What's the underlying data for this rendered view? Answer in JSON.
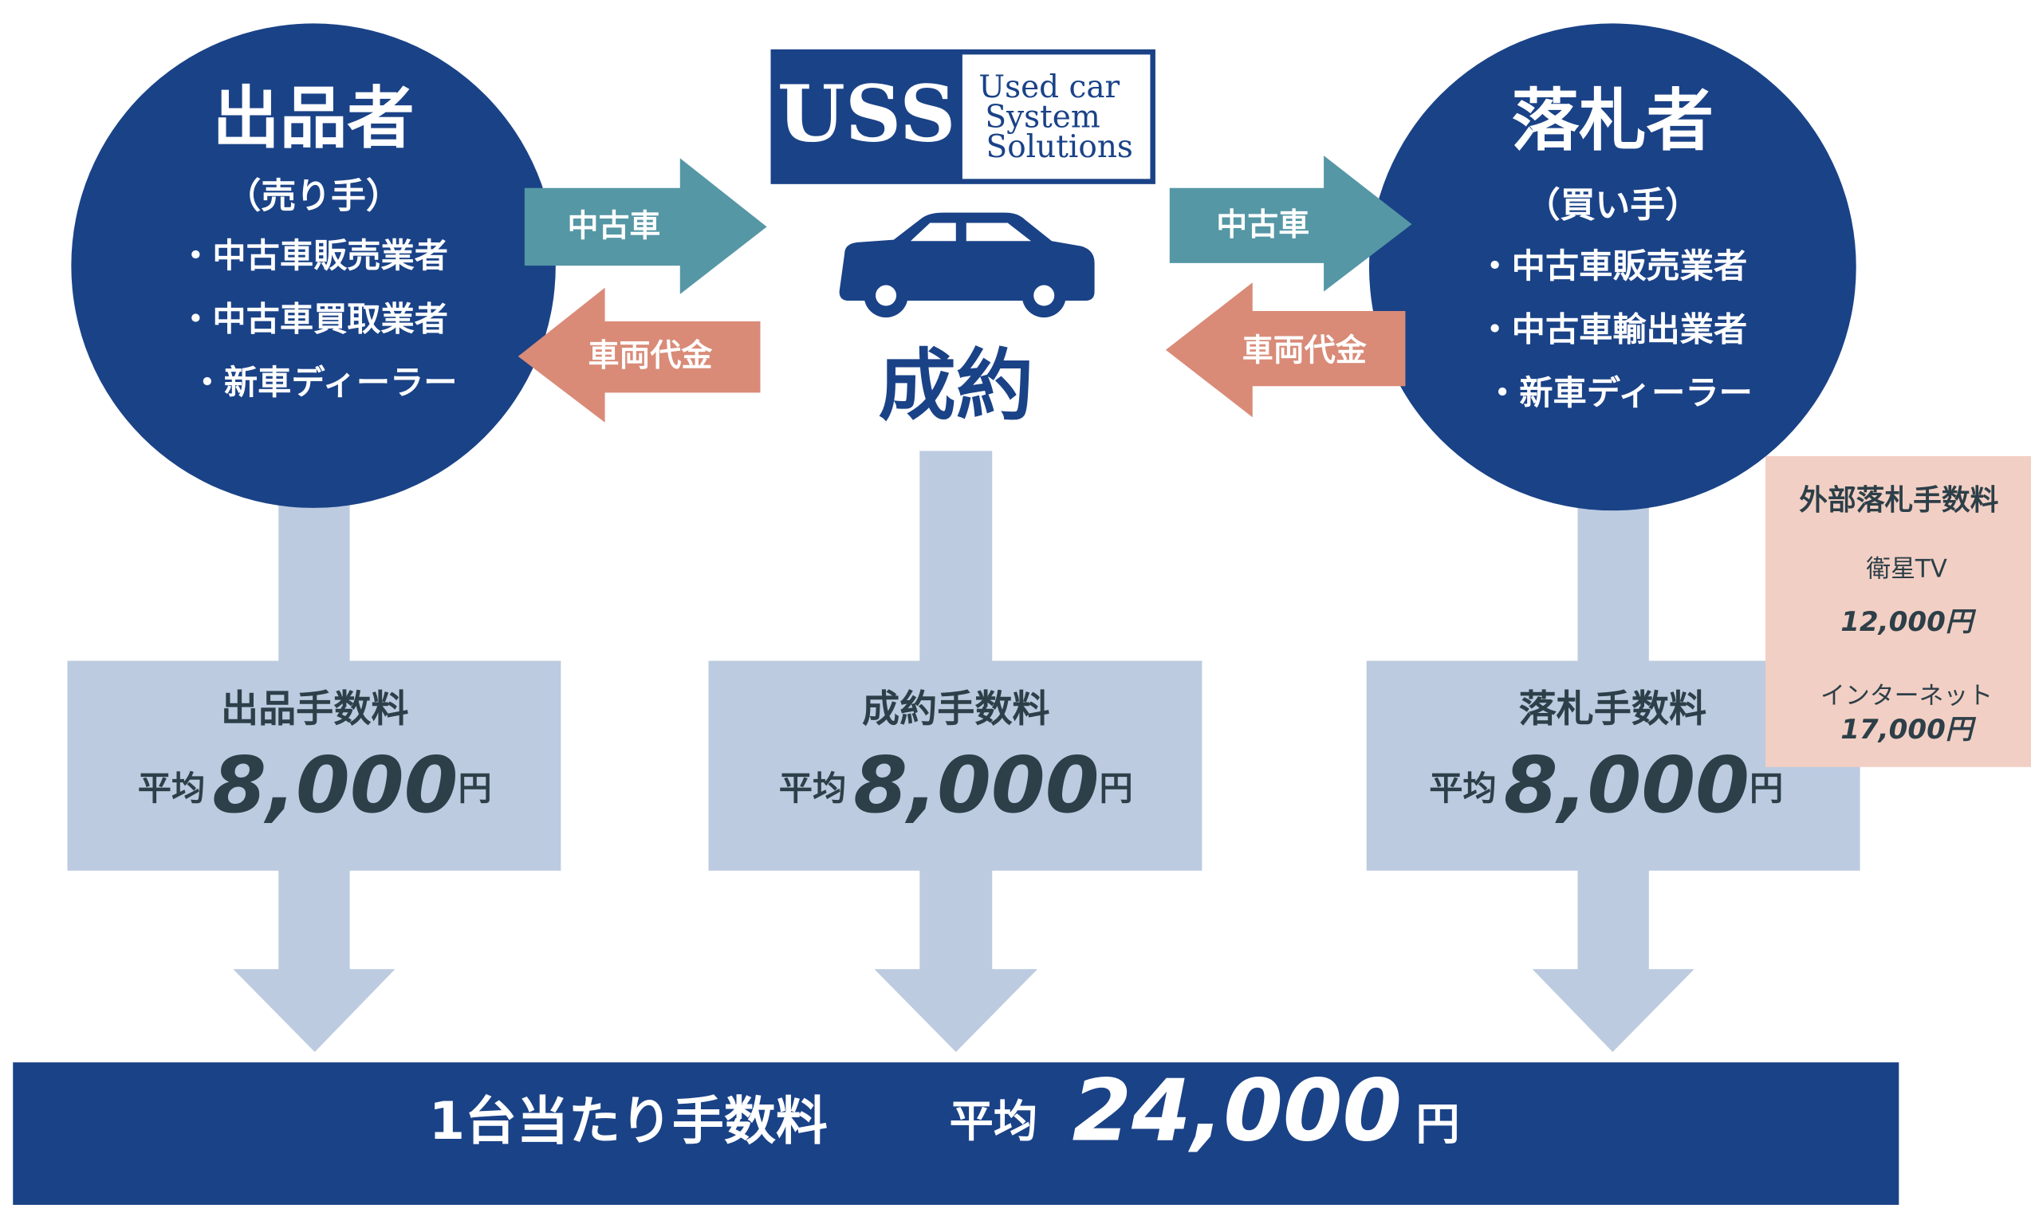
{
  "seller": {
    "title": "出品者",
    "role": "（売り手）",
    "items": [
      "・中古車販売業者",
      "・中古車買取業者",
      "・新車ディーラー"
    ]
  },
  "buyer": {
    "title": "落札者",
    "role": "（買い手）",
    "items": [
      "・中古車販売業者",
      "・中古車輸出業者",
      "・新車ディーラー"
    ]
  },
  "logo": {
    "mark": "USS",
    "lines": [
      "Used car",
      "System",
      "Solutions"
    ]
  },
  "flows": {
    "left_goods": "中古車",
    "left_payment": "車両代金",
    "right_goods": "中古車",
    "right_payment": "車両代金"
  },
  "center_label": "成約",
  "fees": [
    {
      "name": "出品手数料",
      "avg_label": "平均",
      "amount": "8,000",
      "unit": "円"
    },
    {
      "name": "成約手数料",
      "avg_label": "平均",
      "amount": "8,000",
      "unit": "円"
    },
    {
      "name": "落札手数料",
      "avg_label": "平均",
      "amount": "8,000",
      "unit": "円"
    }
  ],
  "external_fees": {
    "title": "外部落札手数料",
    "items": [
      {
        "channel": "衛星TV",
        "amount": "12,000円"
      },
      {
        "channel": "インターネット",
        "amount": "17,000円"
      }
    ]
  },
  "total": {
    "label": "1台当たり手数料",
    "avg_label": "平均",
    "amount": "24,000",
    "unit": "円"
  }
}
